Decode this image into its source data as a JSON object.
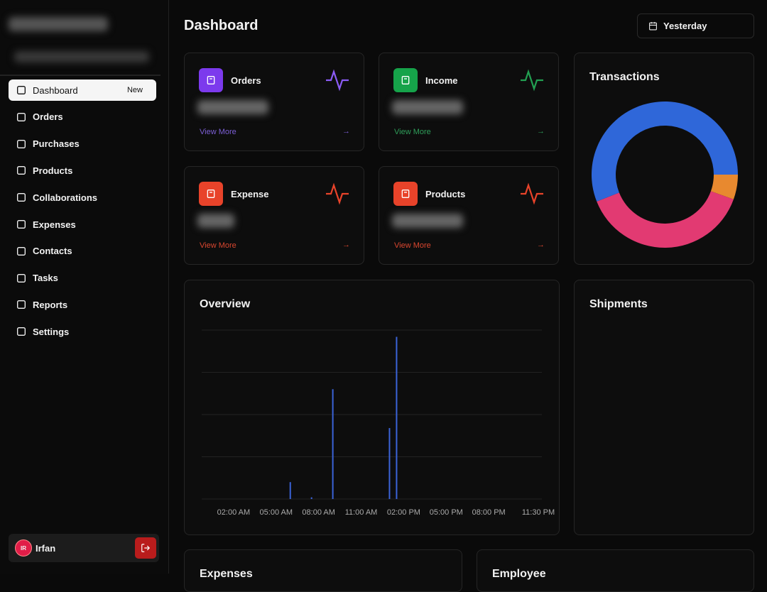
{
  "sidebar": {
    "nav": [
      {
        "label": "Dashboard",
        "badge": "New"
      },
      {
        "label": "Orders"
      },
      {
        "label": "Purchases"
      },
      {
        "label": "Products"
      },
      {
        "label": "Collaborations"
      },
      {
        "label": "Expenses"
      },
      {
        "label": "Contacts"
      },
      {
        "label": "Tasks"
      },
      {
        "label": "Reports"
      },
      {
        "label": "Settings"
      }
    ],
    "user": {
      "initials": "IR",
      "name": "Irfan"
    }
  },
  "header": {
    "title": "Dashboard",
    "date_filter": "Yesterday"
  },
  "stat_cards": [
    {
      "title": "Orders",
      "link": "View More"
    },
    {
      "title": "Income",
      "link": "View More"
    },
    {
      "title": "Expense",
      "link": "View More"
    },
    {
      "title": "Products",
      "link": "View More"
    }
  ],
  "panels": {
    "shipments": "Shipments",
    "expenses": "Expenses",
    "employee": "Employee"
  },
  "chart_data": [
    {
      "type": "pie",
      "title": "Transactions",
      "values": [
        5.5,
        38.5,
        56
      ],
      "colors": [
        "#e8892f",
        "#e23a72",
        "#2f67d9"
      ]
    },
    {
      "type": "bar",
      "title": "Overview",
      "color": "#3b63d8",
      "grid": true,
      "ylim": [
        0,
        100
      ],
      "yticks": [
        0,
        25,
        50,
        75,
        100
      ],
      "categories": [
        null,
        null,
        null,
        null,
        "02:00 AM",
        null,
        null,
        null,
        null,
        null,
        "05:00 AM",
        null,
        null,
        null,
        null,
        null,
        "08:00 AM",
        null,
        null,
        null,
        null,
        null,
        "11:00 AM",
        null,
        null,
        null,
        null,
        null,
        "02:00 PM",
        null,
        null,
        null,
        null,
        null,
        "05:00 PM",
        null,
        null,
        null,
        null,
        null,
        "08:00 PM",
        null,
        null,
        null,
        null,
        null,
        null,
        "11:30 PM"
      ],
      "values": [
        0,
        0,
        0,
        0,
        0,
        0,
        0,
        0,
        0,
        0,
        0,
        0,
        10,
        0,
        0,
        1,
        0,
        0,
        65,
        0,
        0,
        0,
        0,
        0,
        0,
        0,
        42,
        96,
        0,
        0,
        0,
        0,
        0,
        0,
        0,
        0,
        0,
        0,
        0,
        0,
        0,
        0,
        0,
        0,
        0,
        0,
        0,
        0
      ]
    }
  ]
}
